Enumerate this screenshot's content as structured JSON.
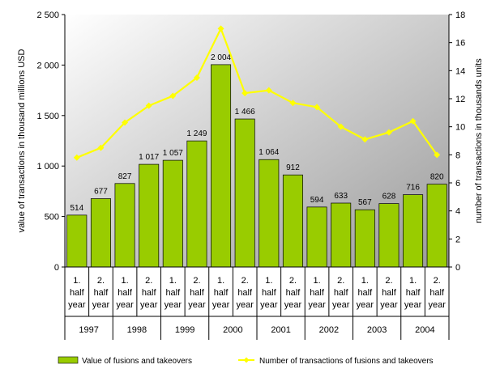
{
  "chart_data": {
    "type": "bar",
    "categories": [
      {
        "line1": "1.",
        "line2": "half",
        "line3": "year"
      },
      {
        "line1": "2.",
        "line2": "half",
        "line3": "year"
      },
      {
        "line1": "1.",
        "line2": "half",
        "line3": "year"
      },
      {
        "line1": "2.",
        "line2": "half",
        "line3": "year"
      },
      {
        "line1": "1.",
        "line2": "half",
        "line3": "year"
      },
      {
        "line1": "2.",
        "line2": "half",
        "line3": "year"
      },
      {
        "line1": "1.",
        "line2": "half",
        "line3": "year"
      },
      {
        "line1": "2.",
        "line2": "half",
        "line3": "year"
      },
      {
        "line1": "1.",
        "line2": "half",
        "line3": "year"
      },
      {
        "line1": "2.",
        "line2": "half",
        "line3": "year"
      },
      {
        "line1": "1.",
        "line2": "half",
        "line3": "year"
      },
      {
        "line1": "2.",
        "line2": "half",
        "line3": "year"
      },
      {
        "line1": "1.",
        "line2": "half",
        "line3": "year"
      },
      {
        "line1": "2.",
        "line2": "half",
        "line3": "year"
      },
      {
        "line1": "1.",
        "line2": "half",
        "line3": "year"
      },
      {
        "line1": "2.",
        "line2": "half",
        "line3": "year"
      }
    ],
    "years": [
      "1997",
      "1998",
      "1999",
      "2000",
      "2001",
      "2002",
      "2003",
      "2004"
    ],
    "series": [
      {
        "name": "Value of fusions and takeovers",
        "type": "bar",
        "axis": "left",
        "color": "#99CC00",
        "values": [
          514,
          677,
          827,
          1017,
          1057,
          1249,
          2004,
          1466,
          1064,
          912,
          594,
          633,
          567,
          628,
          716,
          820
        ],
        "labels": [
          "514",
          "677",
          "827",
          "1 017",
          "1 057",
          "1 249",
          "2 004",
          "1 466",
          "1 064",
          "912",
          "594",
          "633",
          "567",
          "628",
          "716",
          "820"
        ]
      },
      {
        "name": "Number of transactions of fusions and takeovers",
        "type": "line",
        "axis": "right",
        "color": "#FFFF00",
        "values": [
          7.8,
          8.5,
          10.3,
          11.5,
          12.2,
          13.5,
          17.0,
          12.4,
          12.6,
          11.7,
          11.4,
          10.0,
          9.1,
          9.6,
          10.4,
          8.0
        ]
      }
    ],
    "ylabel": "value of transactions in thousand millions USD",
    "y2label": "number of transactions in thousands units",
    "ylim": [
      0,
      2500
    ],
    "y2lim": [
      0,
      18
    ],
    "yticks": [
      0,
      500,
      1000,
      1500,
      2000,
      2500
    ],
    "yticklabels": [
      "0",
      "500",
      "1 000",
      "1 500",
      "2 000",
      "2 500"
    ],
    "y2ticks": [
      0,
      2,
      4,
      6,
      8,
      10,
      12,
      14,
      16,
      18
    ],
    "y2ticklabels": [
      "0",
      "2",
      "4",
      "6",
      "8",
      "10",
      "12",
      "14",
      "16",
      "18"
    ],
    "legend_position": "bottom",
    "background": "gradient-gray"
  }
}
